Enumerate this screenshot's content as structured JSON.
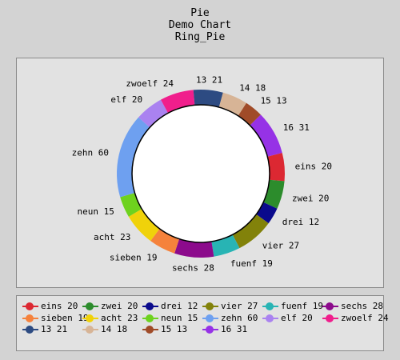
{
  "chart_data": {
    "type": "pie",
    "subtype": "ring",
    "title": [
      "Pie",
      "Demo Chart",
      "Ring_Pie"
    ],
    "slices": [
      {
        "name": "eins",
        "value": 20,
        "label": "eins 20",
        "color": "#dc2832"
      },
      {
        "name": "zwei",
        "value": 20,
        "label": "zwei 20",
        "color": "#2c8c2c"
      },
      {
        "name": "drei",
        "value": 12,
        "label": "drei 12",
        "color": "#0a0a8c"
      },
      {
        "name": "vier",
        "value": 27,
        "label": "vier 27",
        "color": "#82820a"
      },
      {
        "name": "fuenf",
        "value": 19,
        "label": "fuenf 19",
        "color": "#28b4b4"
      },
      {
        "name": "sechs",
        "value": 28,
        "label": "sechs 28",
        "color": "#8c0a8c"
      },
      {
        "name": "sieben",
        "value": 19,
        "label": "sieben 19",
        "color": "#f5823c"
      },
      {
        "name": "acht",
        "value": 23,
        "label": "acht 23",
        "color": "#f0d20a"
      },
      {
        "name": "neun",
        "value": 15,
        "label": "neun 15",
        "color": "#6ed21e"
      },
      {
        "name": "zehn",
        "value": 60,
        "label": "zehn 60",
        "color": "#6ea0f0"
      },
      {
        "name": "elf",
        "value": 20,
        "label": "elf 20",
        "color": "#aa82f0"
      },
      {
        "name": "zwoelf",
        "value": 24,
        "label": "zwoelf 24",
        "color": "#f01e8c"
      },
      {
        "name": "13",
        "value": 21,
        "label": "13 21",
        "color": "#2d4b82"
      },
      {
        "name": "14",
        "value": 18,
        "label": "14 18",
        "color": "#d7b496"
      },
      {
        "name": "15",
        "value": 13,
        "label": "15 13",
        "color": "#a04b28"
      },
      {
        "name": "16",
        "value": 31,
        "label": "16 31",
        "color": "#9632e6"
      }
    ],
    "legend_position": "bottom"
  }
}
